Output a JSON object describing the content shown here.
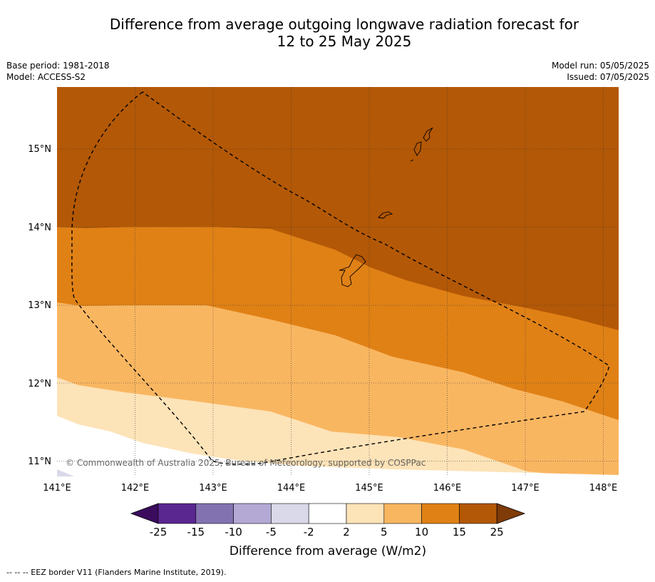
{
  "title": {
    "line1": "Difference from average outgoing longwave radiation forecast for",
    "line2": "12 to 25 May 2025"
  },
  "meta": {
    "base_period": "Base period: 1981-2018",
    "model": "Model: ACCESS-S2",
    "model_run": "Model run: 05/05/2025",
    "issued": "Issued: 07/05/2025"
  },
  "map": {
    "lat_labels": [
      "15°N",
      "14°N",
      "13°N",
      "12°N",
      "11°N"
    ],
    "lon_labels": [
      "141°E",
      "142°E",
      "143°E",
      "144°E",
      "145°E",
      "146°E",
      "147°E",
      "148°E"
    ],
    "copyright": "© Commonwealth of Australia 2025, Bureau of Meteorology, supported by COSPPac"
  },
  "legend": {
    "ticks": [
      "-25",
      "-15",
      "-10",
      "-5",
      "-2",
      "2",
      "5",
      "10",
      "15",
      "25"
    ],
    "title": "Difference from average (W/m2)",
    "colors": [
      "#3b0b5e",
      "#5a2790",
      "#8372b0",
      "#b3a9d4",
      "#d9d9ea",
      "#ffffff",
      "#fde3b8",
      "#f9b661",
      "#e08116",
      "#b35806",
      "#7f3b08"
    ]
  },
  "footer": {
    "eez": "-- -- -- EEZ border V11 (Flanders Marine Institute, 2019)."
  }
}
